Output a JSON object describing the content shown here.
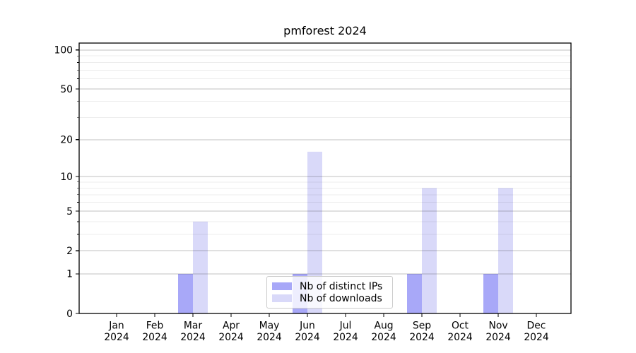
{
  "chart_data": {
    "type": "bar",
    "title": "pmforest 2024",
    "categories": [
      "Jan 2024",
      "Feb 2024",
      "Mar 2024",
      "Apr 2024",
      "May 2024",
      "Jun 2024",
      "Jul 2024",
      "Aug 2024",
      "Sep 2024",
      "Oct 2024",
      "Nov 2024",
      "Dec 2024"
    ],
    "series": [
      {
        "name": "Nb of distinct IPs",
        "color": "#a8a8f8",
        "values": [
          0,
          0,
          1,
          0,
          0,
          1,
          0,
          0,
          1,
          0,
          1,
          0
        ]
      },
      {
        "name": "Nb of downloads",
        "color": "#d9d9f9",
        "values": [
          0,
          0,
          4,
          0,
          0,
          16,
          0,
          0,
          8,
          0,
          8,
          0
        ]
      }
    ],
    "xlabel": "",
    "ylabel": "",
    "yscale": "log1p",
    "ylim": [
      0,
      113
    ],
    "yticks": [
      0,
      1,
      2,
      5,
      10,
      20,
      50,
      100
    ],
    "yticks_minor": [
      3,
      4,
      6,
      7,
      8,
      9,
      30,
      40,
      60,
      70,
      80,
      90
    ],
    "grid": "both",
    "legend_position": "lower center"
  },
  "colors": {
    "background": "#ffffff",
    "spine": "#000000",
    "grid_major": "rgba(0,0,0,0.24)",
    "grid_minor": "rgba(0,0,0,0.07)",
    "tick_text": "#000000",
    "legend_border": "#cccccc",
    "legend_bg": "rgba(255,255,255,0.8)"
  }
}
